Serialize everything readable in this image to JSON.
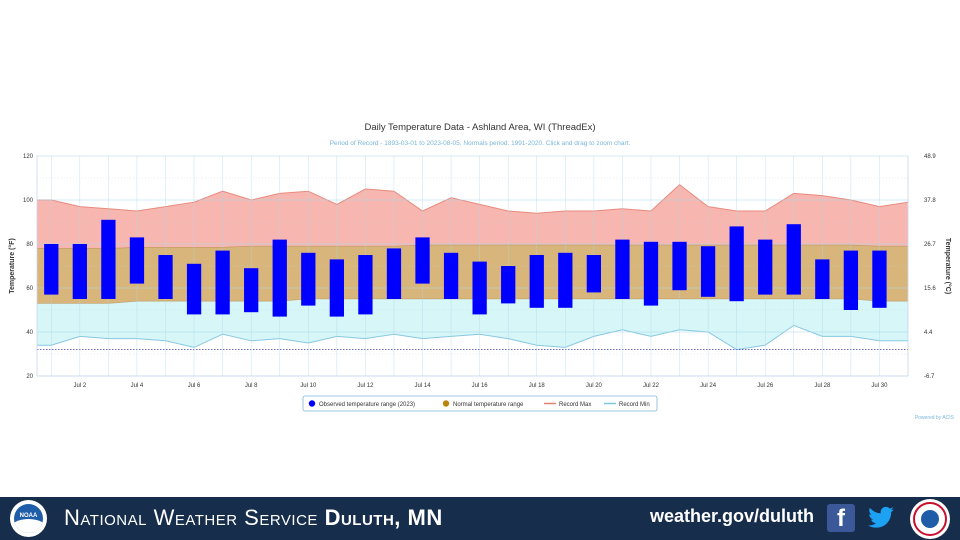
{
  "chart_data": {
    "type": "temperature-range",
    "title": "Daily Temperature Data - Ashland Area, WI (ThreadEx)",
    "subtitle": "Period of Record - 1893-03-01 to 2023-08-05. Normals period: 1991-2020. Click and drag to zoom chart.",
    "ylabel_left": "Temperature (°F)",
    "ylabel_right": "Temperature (°C)",
    "ylim": [
      20,
      120
    ],
    "yticks_left": [
      "120",
      "100",
      "80",
      "60",
      "40",
      "20"
    ],
    "yticks_right": [
      "48.9",
      "37.8",
      "26.7",
      "15.6",
      "4.4",
      "-6.7"
    ],
    "x_tick_labels": [
      "Jul 2",
      "Jul 4",
      "Jul 6",
      "Jul 8",
      "Jul 10",
      "Jul 12",
      "Jul 14",
      "Jul 16",
      "Jul 18",
      "Jul 20",
      "Jul 22",
      "Jul 24",
      "Jul 26",
      "Jul 28",
      "Jul 30"
    ],
    "days": [
      1,
      2,
      3,
      4,
      5,
      6,
      7,
      8,
      9,
      10,
      11,
      12,
      13,
      14,
      15,
      16,
      17,
      18,
      19,
      20,
      21,
      22,
      23,
      24,
      25,
      26,
      27,
      28,
      29,
      30,
      31
    ],
    "observed_high": [
      80,
      80,
      91,
      83,
      75,
      71,
      77,
      69,
      82,
      76,
      73,
      75,
      78,
      83,
      76,
      72,
      70,
      75,
      76,
      75,
      82,
      81,
      81,
      79,
      88,
      82,
      89,
      73,
      77,
      77,
      null
    ],
    "observed_low": [
      57,
      55,
      55,
      62,
      55,
      48,
      48,
      49,
      47,
      52,
      47,
      48,
      55,
      62,
      55,
      48,
      53,
      51,
      51,
      58,
      55,
      52,
      59,
      56,
      54,
      57,
      57,
      55,
      50,
      51,
      null
    ],
    "normal_high": [
      78,
      78,
      78,
      78.5,
      78.5,
      78.5,
      78.5,
      79,
      79,
      79,
      79,
      79,
      79,
      79.5,
      79.5,
      79.5,
      79.5,
      79.5,
      79.5,
      79.5,
      79.5,
      79.5,
      79.5,
      79.5,
      79.5,
      79.5,
      79.5,
      79.5,
      79.5,
      79,
      79
    ],
    "normal_low": [
      53,
      53,
      53,
      54,
      54,
      54,
      54,
      54,
      54,
      55,
      55,
      55,
      55,
      55,
      55,
      55,
      55,
      55,
      55,
      55,
      55,
      55,
      55,
      55,
      55,
      55,
      55,
      55,
      55,
      54,
      54
    ],
    "record_max": [
      100,
      97,
      96,
      95,
      97,
      99,
      104,
      100,
      103,
      104,
      98,
      105,
      104,
      95,
      101,
      98,
      95,
      94,
      95,
      95,
      96,
      95,
      107,
      97,
      95,
      95,
      103,
      102,
      100,
      97,
      99
    ],
    "record_min": [
      34,
      38,
      37,
      37,
      36,
      33,
      39,
      36,
      37,
      35,
      38,
      37,
      39,
      37,
      38,
      39,
      37,
      34,
      33,
      38,
      41,
      38,
      41,
      40,
      32,
      34,
      43,
      38,
      38,
      36,
      36
    ],
    "record_min_line_value": 32,
    "legend": [
      {
        "label": "Observed temperature range (2023)",
        "color": "#0000ff"
      },
      {
        "label": "Normal temperature range",
        "color": "#b8860b"
      },
      {
        "label": "Record Max",
        "color": "#e08070"
      },
      {
        "label": "Record Min",
        "color": "#7fc8e0"
      }
    ],
    "credit": "Powered by ACIS",
    "colors": {
      "observed": "#0000ff",
      "normal_fill": "#d8b57a",
      "record_max_fill": "#f7b7b0",
      "record_min_fill": "#d6f6f8",
      "record_max_line": "#e88a7c",
      "record_min_line": "#88c8e2",
      "grid": "#a8d8ea"
    }
  },
  "footer": {
    "org_prefix": "National Weather Service",
    "org_office": "Duluth, MN",
    "site": "weather.gov/duluth",
    "noaa_logo_text": "NOAA",
    "facebook_icon": "f"
  }
}
